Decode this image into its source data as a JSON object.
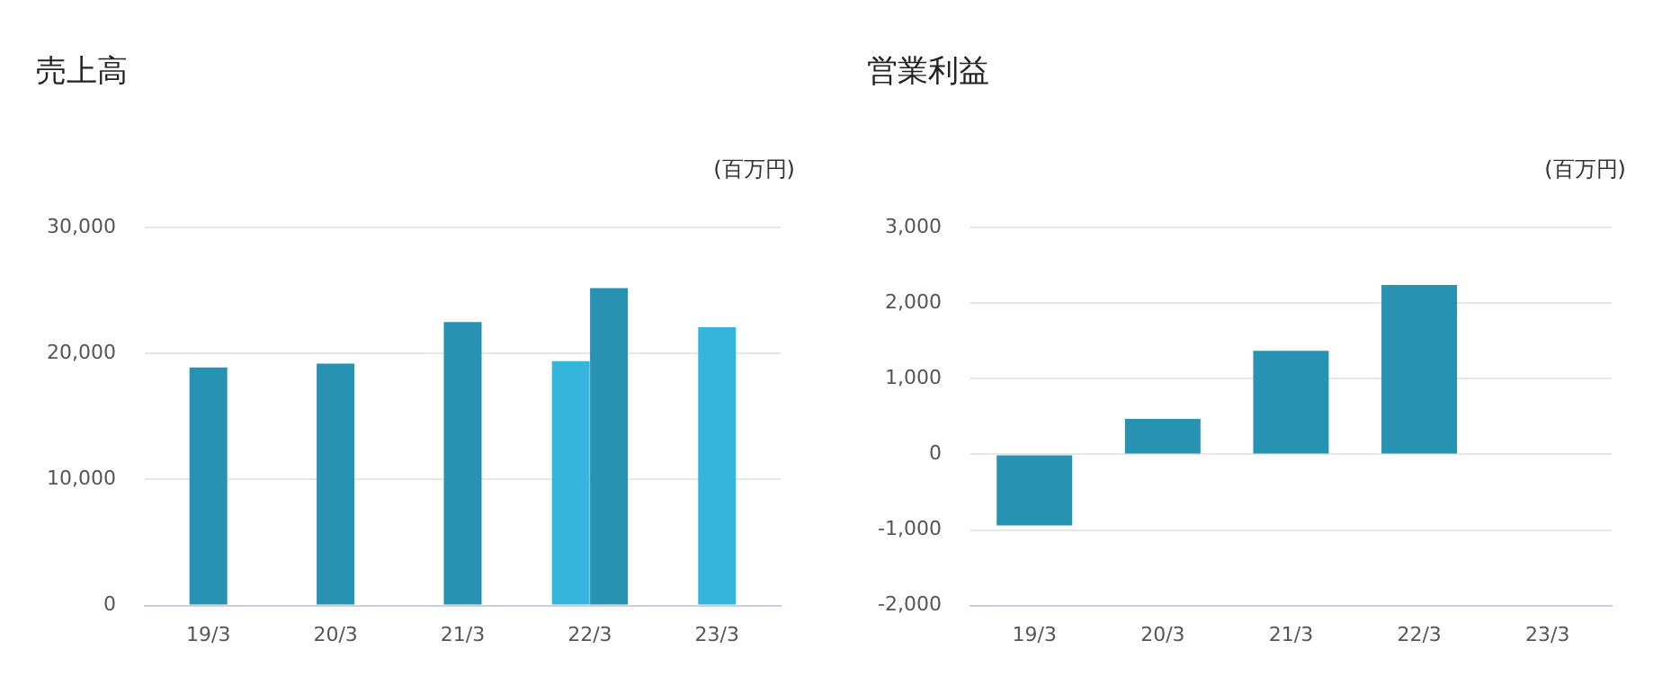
{
  "chart_data": [
    {
      "type": "bar",
      "title": "売上高",
      "ylabel": "(百万円)",
      "categories": [
        "19/3",
        "20/3",
        "21/3",
        "22/3",
        "23/3"
      ],
      "series": [
        {
          "color": "#33b5dc",
          "values": [
            null,
            null,
            null,
            19400,
            22100
          ]
        },
        {
          "color": "#2892b2",
          "values": [
            18900,
            19200,
            22500,
            25200,
            null
          ]
        }
      ],
      "ylim": [
        0,
        30000
      ],
      "yticks": [
        0,
        {
          "value": 10000,
          "label": "10,000"
        },
        {
          "value": 20000,
          "label": "20,000"
        },
        {
          "value": 30000,
          "label": "30,000"
        }
      ],
      "grid": "y"
    },
    {
      "type": "bar",
      "title": "営業利益",
      "ylabel": "(百万円)",
      "categories": [
        "19/3",
        "20/3",
        "21/3",
        "22/3",
        "23/3"
      ],
      "series": [
        {
          "color": "#2892b2",
          "values": [
            -940,
            470,
            1370,
            2240,
            null
          ]
        }
      ],
      "ylim": [
        -2000,
        3000
      ],
      "yticks": [
        {
          "value": -2000,
          "label": "-2,000"
        },
        {
          "value": -1000,
          "label": "-1,000"
        },
        0,
        {
          "value": 1000,
          "label": "1,000"
        },
        {
          "value": 2000,
          "label": "2,000"
        },
        {
          "value": 3000,
          "label": "3,000"
        }
      ],
      "grid": "y"
    }
  ]
}
